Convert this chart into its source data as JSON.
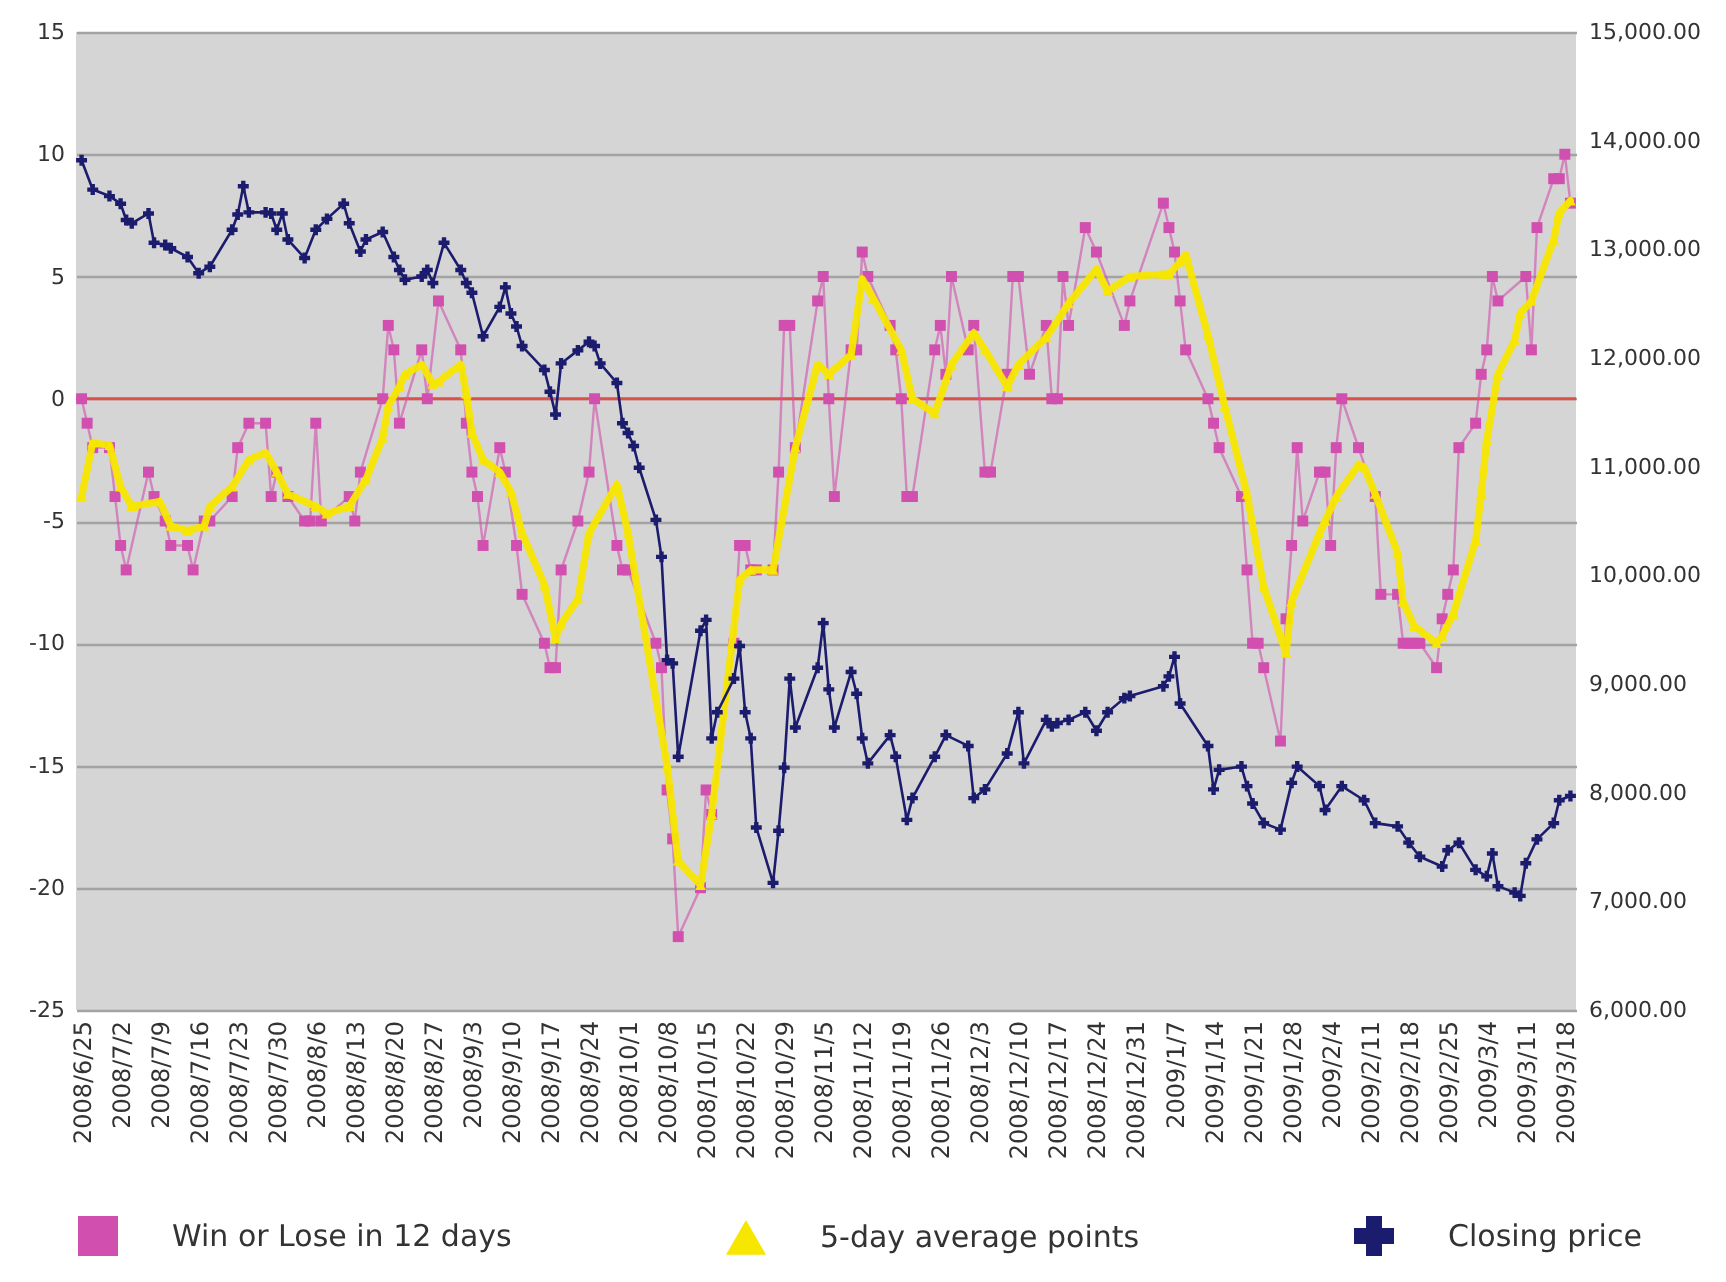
{
  "chart_data": {
    "type": "line",
    "xlim": [
      "2008-06-24",
      "2009-03-20"
    ],
    "xticks": [
      {
        "value": "2008-06-25",
        "label": "2008/6/25"
      },
      {
        "value": "2008-07-02",
        "label": "2008/7/2"
      },
      {
        "value": "2008-07-09",
        "label": "2008/7/9"
      },
      {
        "value": "2008-07-16",
        "label": "2008/7/16"
      },
      {
        "value": "2008-07-23",
        "label": "2008/7/23"
      },
      {
        "value": "2008-07-30",
        "label": "2008/7/30"
      },
      {
        "value": "2008-08-06",
        "label": "2008/8/6"
      },
      {
        "value": "2008-08-13",
        "label": "2008/8/13"
      },
      {
        "value": "2008-08-20",
        "label": "2008/8/20"
      },
      {
        "value": "2008-08-27",
        "label": "2008/8/27"
      },
      {
        "value": "2008-09-03",
        "label": "2008/9/3"
      },
      {
        "value": "2008-09-10",
        "label": "2008/9/10"
      },
      {
        "value": "2008-09-17",
        "label": "2008/9/17"
      },
      {
        "value": "2008-09-24",
        "label": "2008/9/24"
      },
      {
        "value": "2008-10-01",
        "label": "2008/10/1"
      },
      {
        "value": "2008-10-08",
        "label": "2008/10/8"
      },
      {
        "value": "2008-10-15",
        "label": "2008/10/15"
      },
      {
        "value": "2008-10-22",
        "label": "2008/10/22"
      },
      {
        "value": "2008-10-29",
        "label": "2008/10/29"
      },
      {
        "value": "2008-11-05",
        "label": "2008/11/5"
      },
      {
        "value": "2008-11-12",
        "label": "2008/11/12"
      },
      {
        "value": "2008-11-19",
        "label": "2008/11/19"
      },
      {
        "value": "2008-11-26",
        "label": "2008/11/26"
      },
      {
        "value": "2008-12-03",
        "label": "2008/12/3"
      },
      {
        "value": "2008-12-10",
        "label": "2008/12/10"
      },
      {
        "value": "2008-12-17",
        "label": "2008/12/17"
      },
      {
        "value": "2008-12-24",
        "label": "2008/12/24"
      },
      {
        "value": "2008-12-31",
        "label": "2008/12/31"
      },
      {
        "value": "2009-01-07",
        "label": "2009/1/7"
      },
      {
        "value": "2009-01-14",
        "label": "2009/1/14"
      },
      {
        "value": "2009-01-21",
        "label": "2009/1/21"
      },
      {
        "value": "2009-01-28",
        "label": "2009/1/28"
      },
      {
        "value": "2009-02-04",
        "label": "2009/2/4"
      },
      {
        "value": "2009-02-11",
        "label": "2009/2/11"
      },
      {
        "value": "2009-02-18",
        "label": "2009/2/18"
      },
      {
        "value": "2009-02-25",
        "label": "2009/2/25"
      },
      {
        "value": "2009-03-04",
        "label": "2009/3/4"
      },
      {
        "value": "2009-03-11",
        "label": "2009/3/11"
      },
      {
        "value": "2009-03-18",
        "label": "2009/3/18"
      }
    ],
    "ylim": [
      -25,
      15
    ],
    "yticks": [
      -25,
      -20,
      -15,
      -10,
      -5,
      0,
      5,
      10,
      15
    ],
    "y2lim": [
      6000,
      15000
    ],
    "y2ticks": [
      {
        "value": 6000,
        "label": "6,000.00"
      },
      {
        "value": 7000,
        "label": "7,000.00"
      },
      {
        "value": 8000,
        "label": "8,000.00"
      },
      {
        "value": 9000,
        "label": "9,000.00"
      },
      {
        "value": 10000,
        "label": "10,000.00"
      },
      {
        "value": 11000,
        "label": "11,000.00"
      },
      {
        "value": 12000,
        "label": "12,000.00"
      },
      {
        "value": 13000,
        "label": "13,000.00"
      },
      {
        "value": 14000,
        "label": "14,000.00"
      },
      {
        "value": 15000,
        "label": "15,000.00"
      }
    ],
    "grid": "y",
    "legend": "bottom",
    "ref_lines": [
      {
        "axis": "y",
        "value": 0,
        "color": "#e0504a"
      }
    ],
    "series": [
      {
        "name": "Win or Lose in 12 days",
        "color": "#d14fae",
        "marker": "square",
        "x": [
          "2008-06-25",
          "2008-06-26",
          "2008-06-27",
          "2008-06-30",
          "2008-07-01",
          "2008-07-02",
          "2008-07-03",
          "2008-07-07",
          "2008-07-08",
          "2008-07-10",
          "2008-07-11",
          "2008-07-14",
          "2008-07-15",
          "2008-07-17",
          "2008-07-18",
          "2008-07-22",
          "2008-07-23",
          "2008-07-25",
          "2008-07-28",
          "2008-07-29",
          "2008-07-30",
          "2008-08-01",
          "2008-08-04",
          "2008-08-05",
          "2008-08-06",
          "2008-08-07",
          "2008-08-12",
          "2008-08-13",
          "2008-08-14",
          "2008-08-18",
          "2008-08-19",
          "2008-08-20",
          "2008-08-21",
          "2008-08-25",
          "2008-08-26",
          "2008-08-28",
          "2008-09-01",
          "2008-09-02",
          "2008-09-03",
          "2008-09-04",
          "2008-09-05",
          "2008-09-08",
          "2008-09-09",
          "2008-09-11",
          "2008-09-12",
          "2008-09-16",
          "2008-09-17",
          "2008-09-18",
          "2008-09-19",
          "2008-09-22",
          "2008-09-24",
          "2008-09-25",
          "2008-09-29",
          "2008-09-30",
          "2008-10-01",
          "2008-10-06",
          "2008-10-07",
          "2008-10-08",
          "2008-10-09",
          "2008-10-10",
          "2008-10-14",
          "2008-10-15",
          "2008-10-16",
          "2008-10-20",
          "2008-10-21",
          "2008-10-22",
          "2008-10-23",
          "2008-10-24",
          "2008-10-27",
          "2008-10-28",
          "2008-10-29",
          "2008-10-30",
          "2008-10-31",
          "2008-11-04",
          "2008-11-05",
          "2008-11-06",
          "2008-11-07",
          "2008-11-10",
          "2008-11-11",
          "2008-11-12",
          "2008-11-13",
          "2008-11-17",
          "2008-11-18",
          "2008-11-19",
          "2008-11-20",
          "2008-11-21",
          "2008-11-25",
          "2008-11-26",
          "2008-11-27",
          "2008-11-28",
          "2008-12-01",
          "2008-12-02",
          "2008-12-04",
          "2008-12-05",
          "2008-12-08",
          "2008-12-09",
          "2008-12-10",
          "2008-12-12",
          "2008-12-15",
          "2008-12-16",
          "2008-12-17",
          "2008-12-18",
          "2008-12-19",
          "2008-12-22",
          "2008-12-24",
          "2008-12-29",
          "2008-12-30",
          "2009-01-05",
          "2009-01-06",
          "2009-01-07",
          "2009-01-08",
          "2009-01-09",
          "2009-01-13",
          "2009-01-14",
          "2009-01-15",
          "2009-01-19",
          "2009-01-20",
          "2009-01-21",
          "2009-01-22",
          "2009-01-23",
          "2009-01-26",
          "2009-01-27",
          "2009-01-28",
          "2009-01-29",
          "2009-01-30",
          "2009-02-02",
          "2009-02-03",
          "2009-02-04",
          "2009-02-05",
          "2009-02-06",
          "2009-02-09",
          "2009-02-12",
          "2009-02-13",
          "2009-02-16",
          "2009-02-17",
          "2009-02-18",
          "2009-02-19",
          "2009-02-20",
          "2009-02-23",
          "2009-02-24",
          "2009-02-25",
          "2009-02-26",
          "2009-02-27",
          "2009-03-02",
          "2009-03-03",
          "2009-03-04",
          "2009-03-05",
          "2009-03-06",
          "2009-03-11",
          "2009-03-12",
          "2009-03-13",
          "2009-03-16",
          "2009-03-17",
          "2009-03-18",
          "2009-03-19"
        ],
        "values": [
          0,
          -1,
          -2,
          -2,
          -4,
          -6,
          -7,
          -3,
          -4,
          -5,
          -6,
          -6,
          -7,
          -5,
          -5,
          -4,
          -2,
          -1,
          -1,
          -4,
          -3,
          -4,
          -5,
          -5,
          -1,
          -5,
          -4,
          -5,
          -3,
          0,
          3,
          2,
          -1,
          2,
          0,
          4,
          2,
          -1,
          -3,
          -4,
          -6,
          -2,
          -3,
          -6,
          -8,
          -10,
          -11,
          -11,
          -7,
          -5,
          -3,
          0,
          -6,
          -7,
          -7,
          -10,
          -11,
          -16,
          -18,
          -22,
          -20,
          -16,
          -17,
          -10,
          -6,
          -6,
          -7,
          -7,
          -7,
          -3,
          3,
          3,
          -2,
          4,
          5,
          0,
          -4,
          2,
          2,
          6,
          5,
          3,
          2,
          0,
          -4,
          -4,
          2,
          3,
          1,
          5,
          2,
          3,
          -3,
          -3,
          1,
          5,
          5,
          1,
          3,
          0,
          0,
          5,
          3,
          7,
          6,
          3,
          4,
          8,
          7,
          6,
          4,
          2,
          0,
          -1,
          -2,
          -4,
          -7,
          -10,
          -10,
          -11,
          -14,
          -9,
          -6,
          -2,
          -5,
          -3,
          -3,
          -6,
          -2,
          0,
          -2,
          -4,
          -8,
          -8,
          -10,
          -10,
          -10,
          -10,
          -11,
          -9,
          -8,
          -7,
          -2,
          -1,
          1,
          2,
          5,
          4,
          5,
          2,
          7,
          9,
          9,
          10,
          8
        ]
      },
      {
        "name": "5-day average points",
        "color": "#f7e600",
        "marker": "triangle",
        "x": [
          "2008-06-25",
          "2008-06-27",
          "2008-06-30",
          "2008-07-02",
          "2008-07-04",
          "2008-07-09",
          "2008-07-11",
          "2008-07-14",
          "2008-07-17",
          "2008-07-18",
          "2008-07-22",
          "2008-07-25",
          "2008-07-28",
          "2008-07-30",
          "2008-08-01",
          "2008-08-06",
          "2008-08-08",
          "2008-08-12",
          "2008-08-15",
          "2008-08-18",
          "2008-08-19",
          "2008-08-21",
          "2008-08-22",
          "2008-08-25",
          "2008-08-27",
          "2008-08-28",
          "2008-09-01",
          "2008-09-02",
          "2008-09-03",
          "2008-09-05",
          "2008-09-08",
          "2008-09-10",
          "2008-09-12",
          "2008-09-16",
          "2008-09-18",
          "2008-09-19",
          "2008-09-22",
          "2008-09-24",
          "2008-09-29",
          "2008-10-01",
          "2008-10-08",
          "2008-10-10",
          "2008-10-14",
          "2008-10-16",
          "2008-10-21",
          "2008-10-23",
          "2008-10-27",
          "2008-10-31",
          "2008-11-04",
          "2008-11-06",
          "2008-11-10",
          "2008-11-12",
          "2008-11-14",
          "2008-11-19",
          "2008-11-21",
          "2008-11-25",
          "2008-11-28",
          "2008-12-02",
          "2008-12-04",
          "2008-12-08",
          "2008-12-10",
          "2008-12-15",
          "2008-12-19",
          "2008-12-24",
          "2008-12-26",
          "2008-12-30",
          "2009-01-05",
          "2009-01-06",
          "2009-01-08",
          "2009-01-09",
          "2009-01-13",
          "2009-01-16",
          "2009-01-20",
          "2009-01-23",
          "2009-01-27",
          "2009-01-28",
          "2009-02-02",
          "2009-02-03",
          "2009-02-05",
          "2009-02-09",
          "2009-02-10",
          "2009-02-12",
          "2009-02-16",
          "2009-02-17",
          "2009-02-19",
          "2009-02-23",
          "2009-02-24",
          "2009-02-26",
          "2009-03-02",
          "2009-03-03",
          "2009-03-04",
          "2009-03-06",
          "2009-03-09",
          "2009-03-10",
          "2009-03-12",
          "2009-03-16",
          "2009-03-17",
          "2009-03-19"
        ],
        "values": [
          -4,
          -1.8,
          -1.9,
          -3.6,
          -4.4,
          -4.2,
          -5.2,
          -5.4,
          -5.2,
          -4.4,
          -3.6,
          -2.5,
          -2.2,
          -3,
          -3.9,
          -4.4,
          -4.7,
          -4.4,
          -3.3,
          -1.6,
          -0.3,
          0.5,
          1,
          1.4,
          0.6,
          0.7,
          1.4,
          0.2,
          -1.4,
          -2.5,
          -3,
          -3.8,
          -5.5,
          -7.6,
          -9.8,
          -9.2,
          -8.2,
          -5.5,
          -3.5,
          -5.5,
          -15,
          -18.9,
          -19.9,
          -17,
          -7.4,
          -7,
          -7,
          -2,
          1.4,
          1,
          1.8,
          4.9,
          4.1,
          2,
          0,
          -0.6,
          1.4,
          2.7,
          2,
          0.5,
          1.4,
          2.5,
          3.9,
          5.3,
          4.4,
          5,
          5.1,
          5.1,
          5.6,
          5.9,
          2.6,
          -0.3,
          -3.9,
          -7.7,
          -10.4,
          -8.3,
          -5.5,
          -5,
          -4,
          -2.7,
          -2.8,
          -3.9,
          -6.3,
          -8.3,
          -9.3,
          -10,
          -9.7,
          -8.8,
          -5.8,
          -3.9,
          -1.7,
          1,
          2.4,
          3.5,
          4,
          6.5,
          7.6,
          8.1
        ]
      },
      {
        "name": "Closing price",
        "color": "#1c1c6e",
        "marker": "cross",
        "axis": "y2",
        "x": [
          "2008-06-25",
          "2008-06-27",
          "2008-06-30",
          "2008-07-02",
          "2008-07-03",
          "2008-07-04",
          "2008-07-07",
          "2008-07-08",
          "2008-07-10",
          "2008-07-11",
          "2008-07-14",
          "2008-07-16",
          "2008-07-18",
          "2008-07-22",
          "2008-07-23",
          "2008-07-24",
          "2008-07-25",
          "2008-07-28",
          "2008-07-29",
          "2008-07-30",
          "2008-07-31",
          "2008-08-01",
          "2008-08-04",
          "2008-08-06",
          "2008-08-08",
          "2008-08-11",
          "2008-08-12",
          "2008-08-14",
          "2008-08-15",
          "2008-08-18",
          "2008-08-20",
          "2008-08-21",
          "2008-08-22",
          "2008-08-25",
          "2008-08-26",
          "2008-08-27",
          "2008-08-29",
          "2008-09-01",
          "2008-09-02",
          "2008-09-03",
          "2008-09-05",
          "2008-09-08",
          "2008-09-09",
          "2008-09-10",
          "2008-09-11",
          "2008-09-12",
          "2008-09-16",
          "2008-09-17",
          "2008-09-18",
          "2008-09-19",
          "2008-09-22",
          "2008-09-24",
          "2008-09-25",
          "2008-09-26",
          "2008-09-29",
          "2008-09-30",
          "2008-10-01",
          "2008-10-02",
          "2008-10-03",
          "2008-10-06",
          "2008-10-07",
          "2008-10-08",
          "2008-10-09",
          "2008-10-10",
          "2008-10-14",
          "2008-10-15",
          "2008-10-16",
          "2008-10-17",
          "2008-10-20",
          "2008-10-21",
          "2008-10-22",
          "2008-10-23",
          "2008-10-24",
          "2008-10-27",
          "2008-10-28",
          "2008-10-29",
          "2008-10-30",
          "2008-10-31",
          "2008-11-04",
          "2008-11-05",
          "2008-11-06",
          "2008-11-07",
          "2008-11-10",
          "2008-11-11",
          "2008-11-12",
          "2008-11-13",
          "2008-11-17",
          "2008-11-18",
          "2008-11-20",
          "2008-11-21",
          "2008-11-25",
          "2008-11-27",
          "2008-12-01",
          "2008-12-02",
          "2008-12-04",
          "2008-12-08",
          "2008-12-10",
          "2008-12-11",
          "2008-12-15",
          "2008-12-16",
          "2008-12-17",
          "2008-12-19",
          "2008-12-22",
          "2008-12-24",
          "2008-12-26",
          "2008-12-29",
          "2008-12-30",
          "2009-01-05",
          "2009-01-06",
          "2009-01-07",
          "2009-01-08",
          "2009-01-13",
          "2009-01-14",
          "2009-01-15",
          "2009-01-19",
          "2009-01-20",
          "2009-01-21",
          "2009-01-23",
          "2009-01-26",
          "2009-01-28",
          "2009-01-29",
          "2009-02-02",
          "2009-02-03",
          "2009-02-06",
          "2009-02-10",
          "2009-02-12",
          "2009-02-16",
          "2009-02-18",
          "2009-02-20",
          "2009-02-24",
          "2009-02-25",
          "2009-02-27",
          "2009-03-02",
          "2009-03-04",
          "2009-03-05",
          "2009-03-06",
          "2009-03-09",
          "2009-03-10",
          "2009-03-11",
          "2009-03-13",
          "2009-03-16",
          "2009-03-17",
          "2009-03-19"
        ],
        "values": [
          13820,
          13550,
          13490,
          13420,
          13270,
          13240,
          13330,
          13060,
          13040,
          13010,
          12930,
          12780,
          12840,
          13180,
          13320,
          13580,
          13340,
          13340,
          13330,
          13180,
          13330,
          13090,
          12920,
          13180,
          13280,
          13420,
          13240,
          12980,
          13090,
          13160,
          12930,
          12810,
          12720,
          12750,
          12810,
          12690,
          13060,
          12810,
          12690,
          12600,
          12200,
          12470,
          12650,
          12410,
          12290,
          12110,
          11890,
          11690,
          11480,
          11950,
          12070,
          12150,
          12110,
          11950,
          11770,
          11400,
          11310,
          11190,
          10990,
          10510,
          10170,
          9220,
          9190,
          8330,
          9490,
          9590,
          8500,
          8740,
          9050,
          9350,
          8740,
          8500,
          7680,
          7170,
          7650,
          8230,
          9050,
          8600,
          9150,
          9560,
          8950,
          8600,
          9110,
          8910,
          8500,
          8270,
          8530,
          8330,
          7750,
          7950,
          8330,
          8530,
          8430,
          7950,
          8030,
          8360,
          8740,
          8270,
          8670,
          8610,
          8640,
          8670,
          8740,
          8570,
          8740,
          8870,
          8890,
          8980,
          9070,
          9250,
          8820,
          8430,
          8030,
          8210,
          8240,
          8060,
          7900,
          7720,
          7660,
          8090,
          8240,
          8060,
          7840,
          8060,
          7930,
          7720,
          7690,
          7540,
          7410,
          7320,
          7470,
          7540,
          7290,
          7230,
          7440,
          7140,
          7080,
          7050,
          7350,
          7570,
          7720,
          7930,
          7970
        ]
      }
    ]
  }
}
